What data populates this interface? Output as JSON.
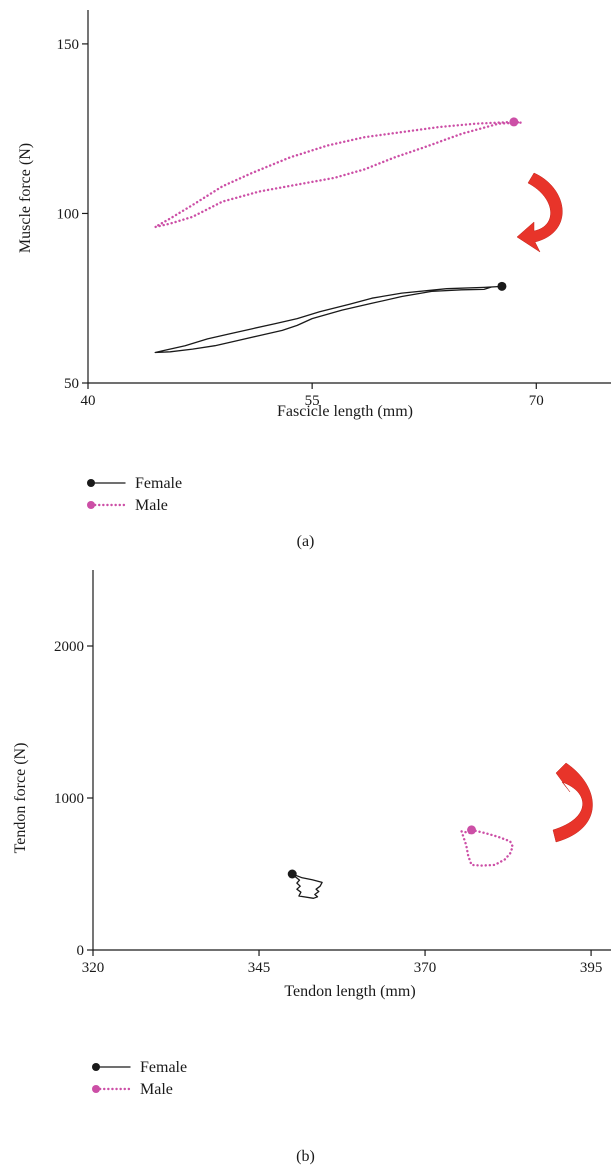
{
  "colors": {
    "female": "#1a1a1a",
    "male": "#cc4fa6",
    "arrow": "#e8342a"
  },
  "chart_data": [
    {
      "type": "line",
      "panel_label": "(a)",
      "xlabel": "Fascicle length (mm)",
      "ylabel": "Muscle force (N)",
      "xlim": [
        40,
        75
      ],
      "ylim": [
        50,
        160
      ],
      "xticks": [
        40,
        55,
        70
      ],
      "yticks": [
        50,
        100,
        150
      ],
      "legend_position": "bottom-left",
      "series": [
        {
          "name": "Female",
          "style": "solid",
          "color": "#1a1a1a",
          "marker": [
            67.7,
            78.5
          ],
          "x": [
            67.7,
            66.5,
            64,
            61,
            59,
            57.5,
            55.5,
            54,
            52.5,
            51,
            49.5,
            48,
            46.5,
            45,
            44.5,
            45.5,
            47,
            48.5,
            50,
            51.5,
            53,
            54,
            55,
            57,
            59,
            61,
            63,
            65,
            66.5,
            67,
            67.7
          ],
          "y": [
            78.5,
            78.2,
            77.8,
            76.5,
            75.0,
            73.2,
            71.0,
            69.0,
            67.5,
            66.0,
            64.5,
            63.0,
            61.0,
            59.5,
            59.0,
            59.2,
            60.0,
            61.0,
            62.5,
            64.0,
            65.5,
            67.0,
            69.0,
            71.5,
            73.5,
            75.5,
            77.0,
            77.5,
            77.6,
            78.3,
            78.5
          ]
        },
        {
          "name": "Male",
          "style": "dotted",
          "color": "#cc4fa6",
          "marker": [
            68.5,
            127
          ],
          "x": [
            68.5,
            69,
            67.5,
            65,
            62.5,
            60.5,
            58.5,
            56.5,
            54,
            51.5,
            49,
            47,
            45.5,
            44.5,
            45.5,
            47,
            49,
            51,
            53.5,
            56,
            58.5,
            61,
            63.5,
            66,
            67.5,
            68.5
          ],
          "y": [
            127,
            126.8,
            126.5,
            123.5,
            119.5,
            116.5,
            113.0,
            110.5,
            108.5,
            106.5,
            103.5,
            99.0,
            97.0,
            96.0,
            98.5,
            102.5,
            108.0,
            112.0,
            116.5,
            120.0,
            122.5,
            124.0,
            125.5,
            126.5,
            126.8,
            127
          ]
        }
      ]
    },
    {
      "type": "line",
      "panel_label": "(b)",
      "xlabel": "Tendon length (mm)",
      "ylabel": "Tendon force (N)",
      "xlim": [
        320,
        398
      ],
      "ylim": [
        0,
        2500
      ],
      "xticks": [
        320,
        345,
        370,
        395
      ],
      "yticks": [
        0,
        1000,
        2000
      ],
      "legend_position": "bottom-left",
      "series": [
        {
          "name": "Female",
          "style": "solid",
          "color": "#1a1a1a",
          "marker": [
            350,
            500
          ],
          "x": [
            350,
            351.5,
            353,
            354.5,
            354.2,
            353.6,
            354.0,
            353.4,
            353.8,
            353.2,
            351,
            351.3,
            350.7,
            351.2,
            350.7,
            351.1,
            350.5,
            350
          ],
          "y": [
            500,
            475,
            462,
            445,
            420,
            400,
            385,
            365,
            350,
            340,
            355,
            380,
            400,
            420,
            440,
            460,
            480,
            500
          ]
        },
        {
          "name": "Male",
          "style": "dotted",
          "color": "#cc4fa6",
          "marker": [
            377,
            790
          ],
          "x": [
            377,
            379,
            381,
            382.8,
            383.2,
            382.8,
            382,
            380.5,
            378.5,
            377,
            376.5,
            376.2,
            375.8,
            375.5,
            376.8,
            377
          ],
          "y": [
            790,
            770,
            745,
            715,
            680,
            635,
            595,
            560,
            555,
            560,
            620,
            690,
            740,
            780,
            770,
            790
          ]
        }
      ]
    }
  ]
}
